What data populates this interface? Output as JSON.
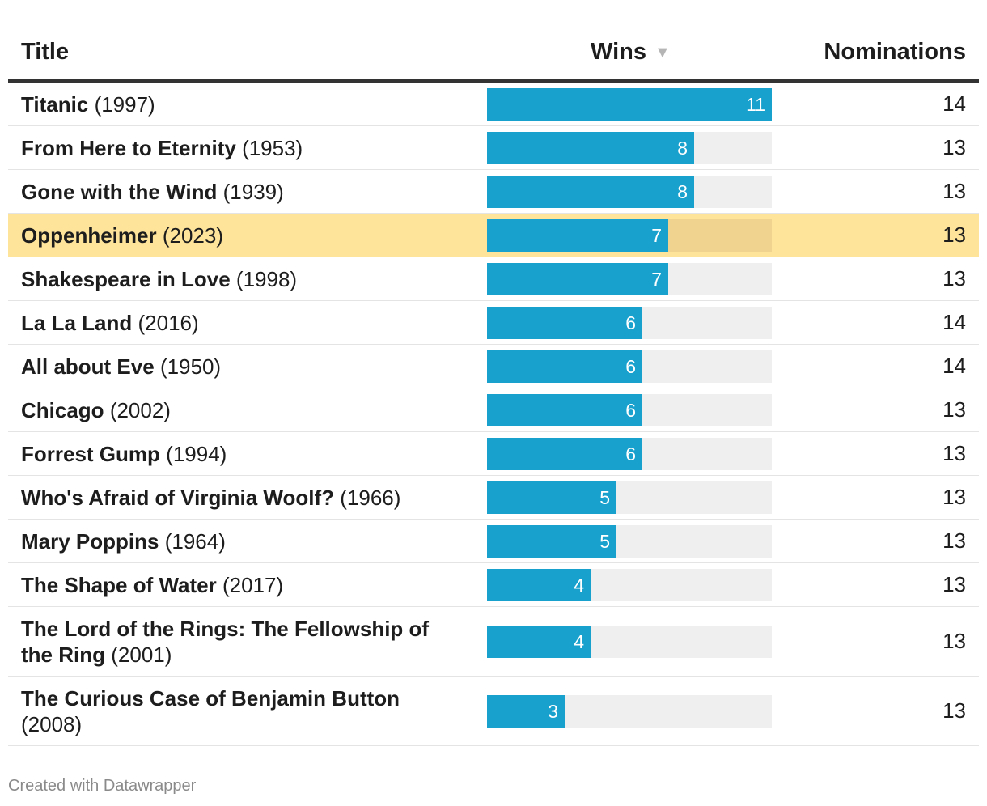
{
  "chart_data": {
    "type": "table",
    "columns": {
      "title": "Title",
      "wins": "Wins",
      "nominations": "Nominations"
    },
    "sort_indicator": "▼",
    "wins_scale_max": 11,
    "rows": [
      {
        "name": "Titanic",
        "year": "(1997)",
        "wins": 11,
        "nominations": 14,
        "highlight": false
      },
      {
        "name": "From Here to Eternity",
        "year": "(1953)",
        "wins": 8,
        "nominations": 13,
        "highlight": false
      },
      {
        "name": "Gone with the Wind",
        "year": "(1939)",
        "wins": 8,
        "nominations": 13,
        "highlight": false
      },
      {
        "name": "Oppenheimer",
        "year": "(2023)",
        "wins": 7,
        "nominations": 13,
        "highlight": true
      },
      {
        "name": "Shakespeare in Love",
        "year": "(1998)",
        "wins": 7,
        "nominations": 13,
        "highlight": false
      },
      {
        "name": "La La Land",
        "year": "(2016)",
        "wins": 6,
        "nominations": 14,
        "highlight": false
      },
      {
        "name": "All about Eve",
        "year": "(1950)",
        "wins": 6,
        "nominations": 14,
        "highlight": false
      },
      {
        "name": "Chicago",
        "year": "(2002)",
        "wins": 6,
        "nominations": 13,
        "highlight": false
      },
      {
        "name": "Forrest Gump",
        "year": "(1994)",
        "wins": 6,
        "nominations": 13,
        "highlight": false
      },
      {
        "name": "Who's Afraid of Virginia Woolf?",
        "year": "(1966)",
        "wins": 5,
        "nominations": 13,
        "highlight": false
      },
      {
        "name": "Mary Poppins",
        "year": "(1964)",
        "wins": 5,
        "nominations": 13,
        "highlight": false
      },
      {
        "name": "The Shape of Water",
        "year": "(2017)",
        "wins": 4,
        "nominations": 13,
        "highlight": false
      },
      {
        "name": "The Lord of the Rings: The Fellowship of the Ring",
        "year": "(2001)",
        "wins": 4,
        "nominations": 13,
        "highlight": false
      },
      {
        "name": "The Curious Case of Benjamin Button",
        "year": "(2008)",
        "wins": 3,
        "nominations": 13,
        "highlight": false
      }
    ]
  },
  "colors": {
    "bar": "#18a1cd",
    "track": "#efefef",
    "highlight_row": "#fee49b"
  },
  "footer": {
    "credit": "Created with Datawrapper"
  }
}
